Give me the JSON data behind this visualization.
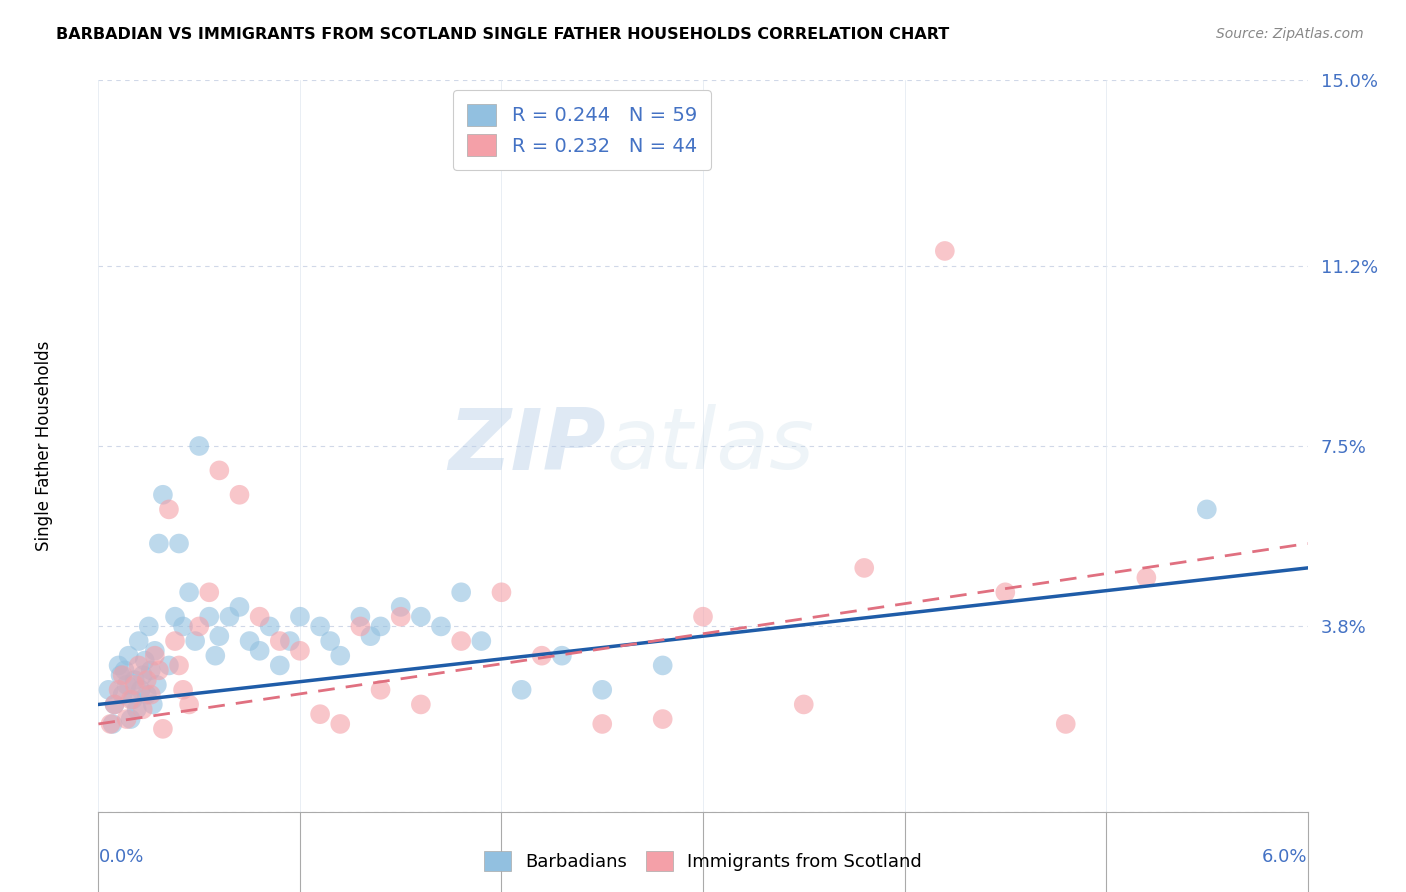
{
  "title": "BARBADIAN VS IMMIGRANTS FROM SCOTLAND SINGLE FATHER HOUSEHOLDS CORRELATION CHART",
  "source": "Source: ZipAtlas.com",
  "ylabel": "Single Father Households",
  "xlim": [
    0.0,
    6.0
  ],
  "ylim": [
    0.0,
    15.0
  ],
  "ytick_vals": [
    0.0,
    3.8,
    7.5,
    11.2,
    15.0
  ],
  "ytick_labels": [
    "",
    "3.8%",
    "7.5%",
    "11.2%",
    "15.0%"
  ],
  "blue_color": "#92c0e0",
  "pink_color": "#f4a0a8",
  "blue_line_color": "#1f5ca8",
  "pink_line_color": "#e07080",
  "blue_R": 0.244,
  "blue_N": 59,
  "pink_R": 0.232,
  "pink_N": 44,
  "watermark_zip": "ZIP",
  "watermark_atlas": "atlas",
  "background_color": "#ffffff",
  "grid_color": "#d0d8e8",
  "accent_color": "#4472c4",
  "blue_scatter_x": [
    0.05,
    0.07,
    0.08,
    0.1,
    0.11,
    0.12,
    0.13,
    0.14,
    0.15,
    0.16,
    0.17,
    0.18,
    0.19,
    0.2,
    0.21,
    0.22,
    0.23,
    0.24,
    0.25,
    0.26,
    0.27,
    0.28,
    0.29,
    0.3,
    0.32,
    0.35,
    0.38,
    0.4,
    0.42,
    0.45,
    0.48,
    0.5,
    0.55,
    0.58,
    0.6,
    0.65,
    0.7,
    0.75,
    0.8,
    0.85,
    0.9,
    0.95,
    1.0,
    1.1,
    1.15,
    1.2,
    1.3,
    1.35,
    1.4,
    1.5,
    1.6,
    1.7,
    1.8,
    1.9,
    2.1,
    2.3,
    2.5,
    2.8,
    5.5
  ],
  "blue_scatter_y": [
    2.5,
    1.8,
    2.2,
    3.0,
    2.8,
    2.4,
    2.9,
    2.6,
    3.2,
    1.9,
    2.3,
    2.7,
    2.1,
    3.5,
    2.5,
    2.8,
    3.1,
    2.4,
    3.8,
    2.9,
    2.2,
    3.3,
    2.6,
    5.5,
    6.5,
    3.0,
    4.0,
    5.5,
    3.8,
    4.5,
    3.5,
    7.5,
    4.0,
    3.2,
    3.6,
    4.0,
    4.2,
    3.5,
    3.3,
    3.8,
    3.0,
    3.5,
    4.0,
    3.8,
    3.5,
    3.2,
    4.0,
    3.6,
    3.8,
    4.2,
    4.0,
    3.8,
    4.5,
    3.5,
    2.5,
    3.2,
    2.5,
    3.0,
    6.2
  ],
  "pink_scatter_x": [
    0.06,
    0.08,
    0.1,
    0.12,
    0.14,
    0.16,
    0.18,
    0.2,
    0.22,
    0.24,
    0.26,
    0.28,
    0.3,
    0.32,
    0.35,
    0.38,
    0.4,
    0.42,
    0.45,
    0.5,
    0.55,
    0.6,
    0.7,
    0.8,
    0.9,
    1.0,
    1.1,
    1.2,
    1.3,
    1.4,
    1.5,
    1.6,
    1.8,
    2.0,
    2.2,
    2.5,
    2.8,
    3.0,
    3.5,
    3.8,
    4.2,
    4.5,
    4.8,
    5.2
  ],
  "pink_scatter_y": [
    1.8,
    2.2,
    2.5,
    2.8,
    1.9,
    2.3,
    2.6,
    3.0,
    2.1,
    2.7,
    2.4,
    3.2,
    2.9,
    1.7,
    6.2,
    3.5,
    3.0,
    2.5,
    2.2,
    3.8,
    4.5,
    7.0,
    6.5,
    4.0,
    3.5,
    3.3,
    2.0,
    1.8,
    3.8,
    2.5,
    4.0,
    2.2,
    3.5,
    4.5,
    3.2,
    1.8,
    1.9,
    4.0,
    2.2,
    5.0,
    11.5,
    4.5,
    1.8,
    4.8
  ]
}
